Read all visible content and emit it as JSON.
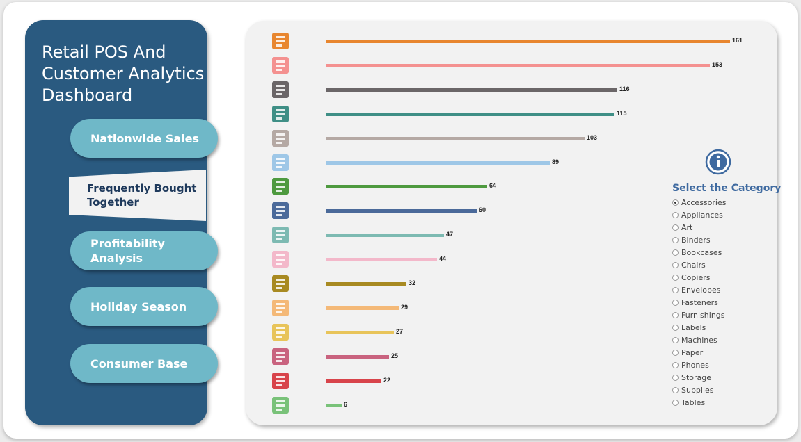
{
  "app": {
    "title": "Retail POS And Customer Analytics Dashboard"
  },
  "nav": [
    {
      "label": "Nationwide Sales",
      "active": false
    },
    {
      "label": "Frequently Bought Together",
      "active": true
    },
    {
      "label": "Profitability Analysis",
      "active": false
    },
    {
      "label": "Holiday Season",
      "active": false
    },
    {
      "label": "Consumer Base",
      "active": false
    }
  ],
  "chart_data": {
    "type": "bar",
    "orientation": "horizontal",
    "categories": [
      "binders-icon",
      "paper-icon",
      "phones-icon",
      "accessories-icon",
      "storage-icon",
      "art-icon",
      "chairs-icon",
      "appliances-icon",
      "labels-icon",
      "tables-icon",
      "envelopes-icon",
      "bookcases-icon",
      "fasteners-icon",
      "machines-icon",
      "supplies-icon",
      "copiers-icon"
    ],
    "values": [
      161,
      153,
      116,
      115,
      103,
      89,
      64,
      60,
      47,
      44,
      32,
      29,
      27,
      25,
      22,
      6
    ],
    "colors": [
      "#e8862f",
      "#f49190",
      "#6b6668",
      "#3f8f86",
      "#b5a9a4",
      "#9ec7e7",
      "#4e9a3f",
      "#4b6a9a",
      "#7dbab2",
      "#f3b8ca",
      "#a88a22",
      "#f4b978",
      "#e8c45a",
      "#c9637f",
      "#d8444b",
      "#79c279"
    ]
  },
  "filter": {
    "title": "Select the Category",
    "options": [
      "Accessories",
      "Appliances",
      "Art",
      "Binders",
      "Bookcases",
      "Chairs",
      "Copiers",
      "Envelopes",
      "Fasteners",
      "Furnishings",
      "Labels",
      "Machines",
      "Paper",
      "Phones",
      "Storage",
      "Supplies",
      "Tables"
    ],
    "selected": "Accessories"
  }
}
